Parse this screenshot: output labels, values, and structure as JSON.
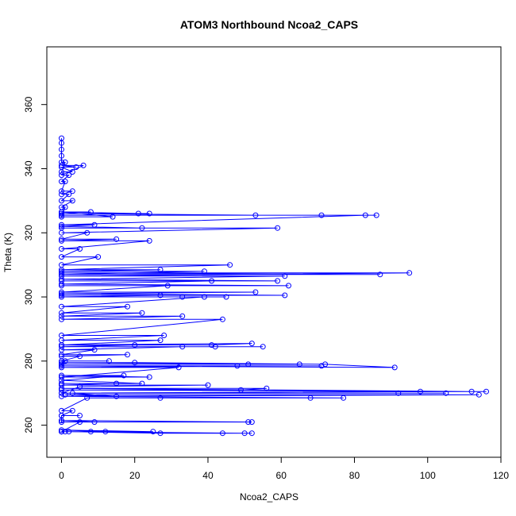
{
  "chart_data": {
    "type": "scatter",
    "title": "ATOM3 Northbound Ncoa2_CAPS",
    "xlabel": "Ncoa2_CAPS",
    "ylabel": "Theta (K)",
    "xlim": [
      -4,
      120
    ],
    "ylim": [
      250,
      378
    ],
    "xticks": [
      "0",
      "20",
      "40",
      "60",
      "80",
      "100",
      "120"
    ],
    "xtick_values": [
      0,
      20,
      40,
      60,
      80,
      100,
      120
    ],
    "yticks": [
      "260",
      "280",
      "300",
      "320",
      "340",
      "360"
    ],
    "ytick_values": [
      260,
      280,
      300,
      320,
      340,
      360
    ],
    "grid": false,
    "marker": "open-circle",
    "line": true,
    "color": "#0000ff",
    "series": [
      {
        "points": [
          [
            0,
            258
          ],
          [
            50,
            257.5
          ],
          [
            52,
            257.5
          ],
          [
            44,
            257.5
          ],
          [
            27,
            257.5
          ],
          [
            2,
            258
          ],
          [
            0,
            258
          ],
          [
            12,
            258
          ],
          [
            0,
            258.5
          ],
          [
            25,
            258
          ],
          [
            1,
            258
          ],
          [
            8,
            258
          ],
          [
            0,
            258
          ],
          [
            5,
            261
          ],
          [
            52,
            261
          ],
          [
            0,
            261.5
          ],
          [
            9,
            261
          ],
          [
            51,
            261
          ],
          [
            0,
            261
          ],
          [
            0,
            263
          ],
          [
            5,
            263
          ],
          [
            0,
            263
          ],
          [
            3,
            264.5
          ],
          [
            0,
            264.5
          ],
          [
            7,
            268.5
          ],
          [
            27,
            268.5
          ],
          [
            68,
            268.5
          ],
          [
            77,
            268.5
          ],
          [
            0,
            269
          ],
          [
            114,
            269.5
          ],
          [
            1,
            269.5
          ],
          [
            15,
            269
          ],
          [
            3,
            270
          ],
          [
            92,
            270
          ],
          [
            105,
            270
          ],
          [
            0,
            270
          ],
          [
            98,
            270.5
          ],
          [
            116,
            270.5
          ],
          [
            0,
            271
          ],
          [
            49,
            271
          ],
          [
            56,
            271.5
          ],
          [
            0,
            271.5
          ],
          [
            112,
            270.5
          ],
          [
            0,
            270
          ],
          [
            5,
            272
          ],
          [
            40,
            272.5
          ],
          [
            0,
            272.5
          ],
          [
            15,
            273
          ],
          [
            0,
            273
          ],
          [
            22,
            273
          ],
          [
            0,
            274
          ],
          [
            17,
            275.5
          ],
          [
            0,
            275.5
          ],
          [
            24,
            275
          ],
          [
            0,
            275
          ],
          [
            32,
            278
          ],
          [
            0,
            278
          ],
          [
            48,
            278.5
          ],
          [
            71,
            278.5
          ],
          [
            0,
            278.5
          ],
          [
            91,
            278
          ],
          [
            72,
            279
          ],
          [
            20,
            279.5
          ],
          [
            0,
            279.5
          ],
          [
            65,
            279
          ],
          [
            51,
            279
          ],
          [
            0,
            279
          ],
          [
            1,
            280
          ],
          [
            13,
            280
          ],
          [
            0,
            280
          ],
          [
            5,
            281.5
          ],
          [
            0,
            281.5
          ],
          [
            18,
            282
          ],
          [
            0,
            282
          ],
          [
            9,
            283.5
          ],
          [
            0,
            283.5
          ],
          [
            33,
            284.5
          ],
          [
            55,
            284.5
          ],
          [
            42,
            284.5
          ],
          [
            0,
            284.5
          ],
          [
            20,
            285
          ],
          [
            0,
            285
          ],
          [
            52,
            285.5
          ],
          [
            41,
            285
          ],
          [
            0,
            285
          ],
          [
            27,
            286.5
          ],
          [
            0,
            286.5
          ],
          [
            28,
            288
          ],
          [
            0,
            288
          ],
          [
            44,
            293
          ],
          [
            0,
            293
          ],
          [
            33,
            294
          ],
          [
            0,
            294
          ],
          [
            22,
            295
          ],
          [
            0,
            295
          ],
          [
            18,
            297
          ],
          [
            0,
            297
          ],
          [
            39,
            300
          ],
          [
            45,
            300
          ],
          [
            33,
            300
          ],
          [
            0,
            300
          ],
          [
            27,
            300.5
          ],
          [
            0,
            300.5
          ],
          [
            61,
            300.5
          ],
          [
            0,
            301
          ],
          [
            53,
            301.5
          ],
          [
            0,
            301.5
          ],
          [
            29,
            303.5
          ],
          [
            0,
            303.5
          ],
          [
            62,
            303.5
          ],
          [
            0,
            304
          ],
          [
            41,
            305
          ],
          [
            0,
            305
          ],
          [
            59,
            305
          ],
          [
            0,
            305.5
          ],
          [
            61,
            306.5
          ],
          [
            0,
            306.5
          ],
          [
            95,
            307.5
          ],
          [
            0,
            307.5
          ],
          [
            87,
            307
          ],
          [
            0,
            307
          ],
          [
            39,
            308
          ],
          [
            0,
            308
          ],
          [
            27,
            308.5
          ],
          [
            0,
            308.5
          ],
          [
            46,
            310
          ],
          [
            0,
            310
          ],
          [
            10,
            312.5
          ],
          [
            0,
            312.5
          ],
          [
            5,
            315
          ],
          [
            0,
            315
          ],
          [
            24,
            317.5
          ],
          [
            0,
            317.5
          ],
          [
            15,
            318
          ],
          [
            0,
            318
          ],
          [
            7,
            320
          ],
          [
            0,
            320
          ],
          [
            59,
            321.5
          ],
          [
            0,
            321.5
          ],
          [
            22,
            321.5
          ],
          [
            0,
            322
          ],
          [
            9,
            322.5
          ],
          [
            0,
            322.5
          ],
          [
            83,
            325.5
          ],
          [
            86,
            325.5
          ],
          [
            0,
            325.5
          ],
          [
            71,
            325.5
          ],
          [
            53,
            325.5
          ],
          [
            0,
            326
          ],
          [
            24,
            326
          ],
          [
            21,
            326
          ],
          [
            0,
            326.5
          ],
          [
            8,
            326.5
          ],
          [
            0,
            326.5
          ],
          [
            14,
            325
          ],
          [
            0,
            325
          ],
          [
            1,
            328
          ],
          [
            0,
            328
          ],
          [
            3,
            330
          ],
          [
            0,
            330
          ],
          [
            2,
            332
          ],
          [
            0,
            332
          ],
          [
            3,
            333
          ],
          [
            0,
            333
          ],
          [
            1,
            336
          ],
          [
            0,
            336
          ],
          [
            2,
            338
          ],
          [
            0,
            338
          ],
          [
            6,
            341
          ],
          [
            0,
            341
          ],
          [
            4,
            340.5
          ],
          [
            0,
            340.5
          ],
          [
            3,
            339
          ],
          [
            0,
            339
          ],
          [
            1,
            342
          ],
          [
            0,
            342
          ],
          [
            0,
            344
          ],
          [
            0,
            346
          ],
          [
            0,
            348
          ],
          [
            0,
            349.5
          ]
        ]
      }
    ]
  }
}
